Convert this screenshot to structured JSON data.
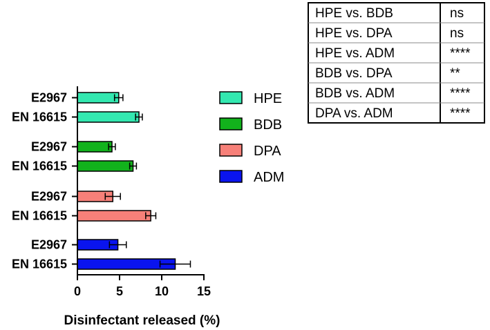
{
  "chart_data": {
    "type": "bar",
    "orientation": "horizontal",
    "title": "",
    "xlabel": "Disinfectant released (%)",
    "ylabel": "",
    "xlim": [
      0,
      15
    ],
    "xticks": [
      0,
      5,
      10,
      15
    ],
    "grid": false,
    "legend_position": "right",
    "groups": [
      {
        "name": "HPE",
        "color": "#33e8b0",
        "bars": [
          {
            "label": "E2967",
            "value": 4.9,
            "error": 0.5
          },
          {
            "label": "EN 16615",
            "value": 7.3,
            "error": 0.4
          }
        ]
      },
      {
        "name": "BDB",
        "color": "#12b21c",
        "bars": [
          {
            "label": "E2967",
            "value": 4.1,
            "error": 0.4
          },
          {
            "label": "EN 16615",
            "value": 6.6,
            "error": 0.4
          }
        ]
      },
      {
        "name": "DPA",
        "color": "#f78079",
        "bars": [
          {
            "label": "E2967",
            "value": 4.2,
            "error": 0.9
          },
          {
            "label": "EN 16615",
            "value": 8.7,
            "error": 0.6
          }
        ]
      },
      {
        "name": "ADM",
        "color": "#0a14ef",
        "bars": [
          {
            "label": "E2967",
            "value": 4.8,
            "error": 1.0
          },
          {
            "label": "EN 16615",
            "value": 11.6,
            "error": 1.8
          }
        ]
      }
    ],
    "legend": [
      "HPE",
      "BDB",
      "DPA",
      "ADM"
    ],
    "stats_table": [
      {
        "comparison": "HPE vs. BDB",
        "significance": "ns"
      },
      {
        "comparison": "HPE vs. DPA",
        "significance": "ns"
      },
      {
        "comparison": "HPE vs. ADM",
        "significance": "****"
      },
      {
        "comparison": "BDB vs. DPA",
        "significance": "**"
      },
      {
        "comparison": "BDB vs. ADM",
        "significance": "****"
      },
      {
        "comparison": "DPA vs. ADM",
        "significance": "****"
      }
    ]
  }
}
